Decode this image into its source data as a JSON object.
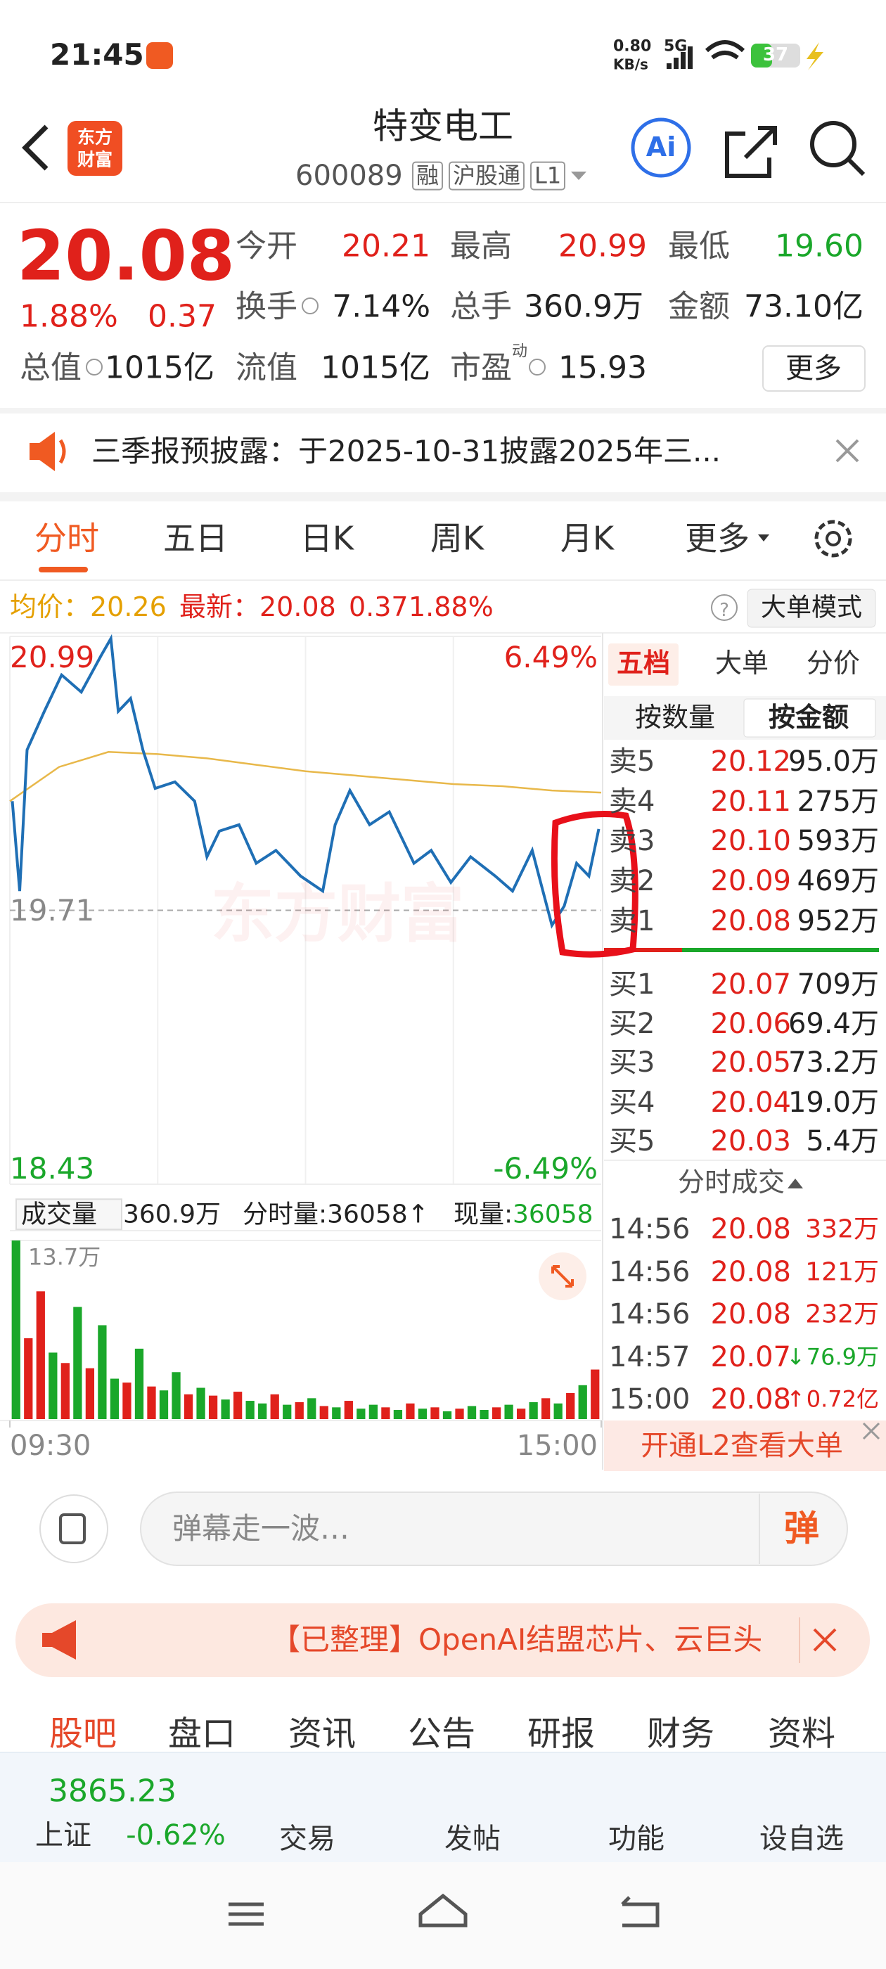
{
  "status_bar": {
    "time": "21:45",
    "speed": "0.80",
    "speed_unit": "KB/s",
    "network": "5G",
    "battery": "37"
  },
  "header": {
    "logo": [
      "东方",
      "财富"
    ],
    "title": "特变电工",
    "code": "600089",
    "tags": [
      "融",
      "沪股通",
      "L1"
    ],
    "ai": "Ai"
  },
  "quote": {
    "price": "20.08",
    "change_pct": "1.88%",
    "change": "0.37",
    "rows": [
      [
        {
          "label": "今开",
          "value": "20.21"
        },
        {
          "label": "最高",
          "value": "20.99"
        },
        {
          "label": "最低",
          "value": "19.60"
        }
      ],
      [
        {
          "label": "换手",
          "value": "7.14%"
        },
        {
          "label": "总手",
          "value": "360.9万"
        },
        {
          "label": "金额",
          "value": "73.10亿"
        }
      ],
      [
        {
          "label": "总值",
          "value": "1015亿"
        },
        {
          "label": "流值",
          "value": "1015亿"
        },
        {
          "label": "市盈",
          "value": "15.93"
        }
      ]
    ],
    "pe_mark": "动",
    "more": "更多"
  },
  "notice": "三季报预披露：于2025-10-31披露2025年三...",
  "tabs": [
    "分时",
    "五日",
    "日K",
    "周K",
    "月K",
    "更多"
  ],
  "info_bar": {
    "avg_label": "均价：",
    "avg": "20.26",
    "latest_label": "最新：",
    "latest": "20.08",
    "change": "0.37",
    "change_pct": "1.88%",
    "mode_button": "大单模式"
  },
  "watermark": "东方财富",
  "chart_data": [
    {
      "type": "line",
      "xlim": [
        0,
        240
      ],
      "ylim": [
        18.43,
        20.99
      ],
      "yticks": [
        20.99,
        19.71,
        18.43
      ],
      "y2lim": [
        -6.49,
        6.49
      ],
      "y2ticks": [
        {
          "value": 6.49,
          "label": "6.49%"
        },
        {
          "value": -6.49,
          "label": "-6.49%"
        }
      ],
      "xticks": [
        {
          "value": 0,
          "label": "09:30"
        },
        {
          "value": 240,
          "label": "15:00"
        }
      ],
      "series": [
        {
          "color": "#1f6fb5",
          "x": [
            1,
            4,
            7,
            14,
            21,
            29,
            37,
            41,
            44,
            49,
            54,
            59,
            67,
            75,
            80,
            85,
            93,
            100,
            108,
            118,
            127,
            132,
            138,
            146,
            154,
            164,
            171,
            179,
            187,
            197,
            204,
            212,
            220,
            225,
            230,
            235,
            239
          ],
          "values": [
            20.22,
            19.8,
            20.46,
            20.64,
            20.81,
            20.73,
            20.9,
            20.98,
            20.64,
            20.7,
            20.46,
            20.28,
            20.31,
            20.22,
            19.96,
            20.08,
            20.11,
            19.93,
            19.99,
            19.87,
            19.8,
            20.11,
            20.27,
            20.11,
            20.17,
            19.93,
            19.99,
            19.84,
            19.96,
            19.87,
            19.8,
            19.99,
            19.64,
            19.73,
            19.93,
            19.87,
            20.09
          ]
        },
        {
          "color": "#e8b84a",
          "x": [
            0,
            20,
            40,
            60,
            80,
            100,
            120,
            140,
            160,
            180,
            200,
            220,
            240
          ],
          "values": [
            20.22,
            20.38,
            20.45,
            20.44,
            20.42,
            20.39,
            20.36,
            20.34,
            20.32,
            20.3,
            20.29,
            20.27,
            20.26
          ]
        }
      ]
    },
    {
      "type": "bar",
      "ylim": [
        0,
        13.7
      ],
      "yticks": [
        {
          "value": 13.7,
          "label": "13.7万"
        }
      ],
      "values": [
        13.7,
        6.2,
        9.8,
        5.1,
        4.3,
        8.6,
        3.9,
        7.2,
        3.1,
        2.8,
        5.4,
        2.5,
        2.2,
        3.6,
        1.9,
        2.4,
        1.8,
        1.5,
        2.1,
        1.4,
        1.2,
        1.9,
        1.1,
        1.3,
        1.6,
        1.0,
        0.9,
        1.4,
        0.8,
        1.1,
        0.9,
        0.7,
        1.2,
        0.8,
        0.9,
        0.6,
        0.8,
        1.0,
        0.7,
        0.9,
        1.1,
        0.8,
        1.3,
        1.6,
        1.2,
        2.0,
        2.6,
        3.8
      ],
      "colors": [
        "#1aa72a",
        "#e0211b",
        "#e0211b",
        "#1aa72a",
        "#e0211b",
        "#1aa72a",
        "#e0211b",
        "#1aa72a",
        "#1aa72a",
        "#e0211b",
        "#1aa72a",
        "#e0211b",
        "#1aa72a",
        "#1aa72a",
        "#e0211b",
        "#1aa72a",
        "#e0211b",
        "#1aa72a",
        "#e0211b",
        "#1aa72a",
        "#1aa72a",
        "#e0211b",
        "#1aa72a",
        "#e0211b",
        "#1aa72a",
        "#e0211b",
        "#1aa72a",
        "#e0211b",
        "#1aa72a",
        "#1aa72a",
        "#e0211b",
        "#1aa72a",
        "#e0211b",
        "#1aa72a",
        "#e0211b",
        "#1aa72a",
        "#e0211b",
        "#1aa72a",
        "#1aa72a",
        "#e0211b",
        "#1aa72a",
        "#e0211b",
        "#1aa72a",
        "#e0211b",
        "#1aa72a",
        "#e0211b",
        "#1aa72a",
        "#e0211b"
      ]
    }
  ],
  "volume_bar": {
    "label": "成交量",
    "total": "360.9万",
    "period": "分时量:36058↑",
    "current_label": "现量:",
    "current": "36058"
  },
  "order_book": {
    "tabs": [
      "五档",
      "大单",
      "分价"
    ],
    "sort_tabs": [
      "按数量",
      "按金额"
    ],
    "asks": [
      {
        "label": "卖5",
        "price": "20.12",
        "volume": "95.0万"
      },
      {
        "label": "卖4",
        "price": "20.11",
        "volume": "275万"
      },
      {
        "label": "卖3",
        "price": "20.10",
        "volume": "593万"
      },
      {
        "label": "卖2",
        "price": "20.09",
        "volume": "469万"
      },
      {
        "label": "卖1",
        "price": "20.08",
        "volume": "952万"
      }
    ],
    "bids": [
      {
        "label": "买1",
        "price": "20.07",
        "volume": "709万"
      },
      {
        "label": "买2",
        "price": "20.06",
        "volume": "69.4万"
      },
      {
        "label": "买3",
        "price": "20.05",
        "volume": "73.2万"
      },
      {
        "label": "买4",
        "price": "20.04",
        "volume": "19.0万"
      },
      {
        "label": "买5",
        "price": "20.03",
        "volume": "5.4万"
      }
    ]
  },
  "trades": {
    "title": "分时成交",
    "rows": [
      {
        "time": "14:56",
        "price": "20.08",
        "volume": "332万"
      },
      {
        "time": "14:56",
        "price": "20.08",
        "volume": "121万"
      },
      {
        "time": "14:56",
        "price": "20.08",
        "volume": "232万"
      },
      {
        "time": "14:57",
        "price": "20.07",
        "arrow": "↓",
        "volume": "76.9万"
      },
      {
        "time": "15:00",
        "price": "20.08",
        "arrow": "↑",
        "volume": "0.72亿"
      }
    ]
  },
  "l2_banner": "开通L2查看大单",
  "comment": {
    "placeholder": "弹幕走一波…",
    "button": "弹"
  },
  "news": "【已整理】OpenAI结盟芯片、云巨头",
  "section_tabs": [
    "股吧",
    "盘口",
    "资讯",
    "公告",
    "研报",
    "财务",
    "资料"
  ],
  "bottom_nav": {
    "index_value": "3865.23",
    "index_name": "上证",
    "index_change": "-0.62%",
    "items": [
      "交易",
      "发帖",
      "功能",
      "设自选"
    ]
  }
}
